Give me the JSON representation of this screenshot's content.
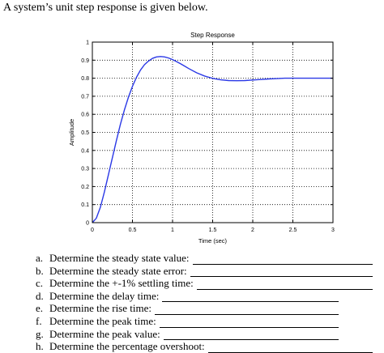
{
  "intro": "A system’s unit step response is given below.",
  "chart_data": {
    "type": "line",
    "title": "Step Response",
    "xlabel": "Time (sec)",
    "ylabel": "Amplitude",
    "xlim": [
      0,
      3
    ],
    "ylim": [
      0,
      1
    ],
    "grid": true,
    "grid_style": "dotted",
    "x_ticks": [
      {
        "value": 0,
        "label": "0"
      },
      {
        "value": 0.5,
        "label": "0.5"
      },
      {
        "value": 1,
        "label": "1"
      },
      {
        "value": 1.5,
        "label": "1.5"
      },
      {
        "value": 2,
        "label": "2"
      },
      {
        "value": 2.5,
        "label": "2.5"
      },
      {
        "value": 3,
        "label": "3"
      }
    ],
    "y_ticks": [
      {
        "value": 0,
        "label": "0"
      },
      {
        "value": 0.1,
        "label": "0.1"
      },
      {
        "value": 0.2,
        "label": "0.2"
      },
      {
        "value": 0.3,
        "label": "0.3"
      },
      {
        "value": 0.4,
        "label": "0.4"
      },
      {
        "value": 0.5,
        "label": "0.5"
      },
      {
        "value": 0.6,
        "label": "0.6"
      },
      {
        "value": 0.7,
        "label": "0.7"
      },
      {
        "value": 0.8,
        "label": "0.8"
      },
      {
        "value": 0.9,
        "label": "0.9"
      },
      {
        "value": 1,
        "label": "1"
      }
    ],
    "series": [
      {
        "color": "#2b39e6",
        "x": [
          0,
          0.05,
          0.1,
          0.15,
          0.2,
          0.25,
          0.3,
          0.35,
          0.4,
          0.45,
          0.5,
          0.55,
          0.6,
          0.65,
          0.7,
          0.75,
          0.8,
          0.85,
          0.9,
          0.95,
          1.0,
          1.05,
          1.1,
          1.15,
          1.2,
          1.3,
          1.4,
          1.5,
          1.6,
          1.7,
          1.8,
          1.9,
          2.0,
          2.1,
          2.2,
          2.3,
          2.4,
          2.5,
          2.6,
          2.7,
          2.8,
          2.9,
          3.0
        ],
        "y": [
          0,
          0.025,
          0.085,
          0.17,
          0.265,
          0.36,
          0.455,
          0.545,
          0.625,
          0.695,
          0.755,
          0.805,
          0.845,
          0.875,
          0.895,
          0.91,
          0.918,
          0.92,
          0.918,
          0.912,
          0.903,
          0.892,
          0.88,
          0.867,
          0.854,
          0.83,
          0.812,
          0.799,
          0.791,
          0.787,
          0.786,
          0.787,
          0.79,
          0.793,
          0.796,
          0.798,
          0.8,
          0.8,
          0.8,
          0.8,
          0.8,
          0.8,
          0.8
        ]
      }
    ]
  },
  "questions": [
    {
      "letter": "a.",
      "text": "Determine the steady state value:"
    },
    {
      "letter": "b.",
      "text": "Determine the steady state error:"
    },
    {
      "letter": "c.",
      "text": "Determine the +-1% settling time:"
    },
    {
      "letter": "d.",
      "text": "Determine the delay time:"
    },
    {
      "letter": "e.",
      "text": "Determine the rise time:"
    },
    {
      "letter": "f.",
      "text": "Determine the peak time:"
    },
    {
      "letter": "g.",
      "text": "Determine the peak value:"
    },
    {
      "letter": "h.",
      "text": "Determine the percentage overshoot:"
    }
  ]
}
